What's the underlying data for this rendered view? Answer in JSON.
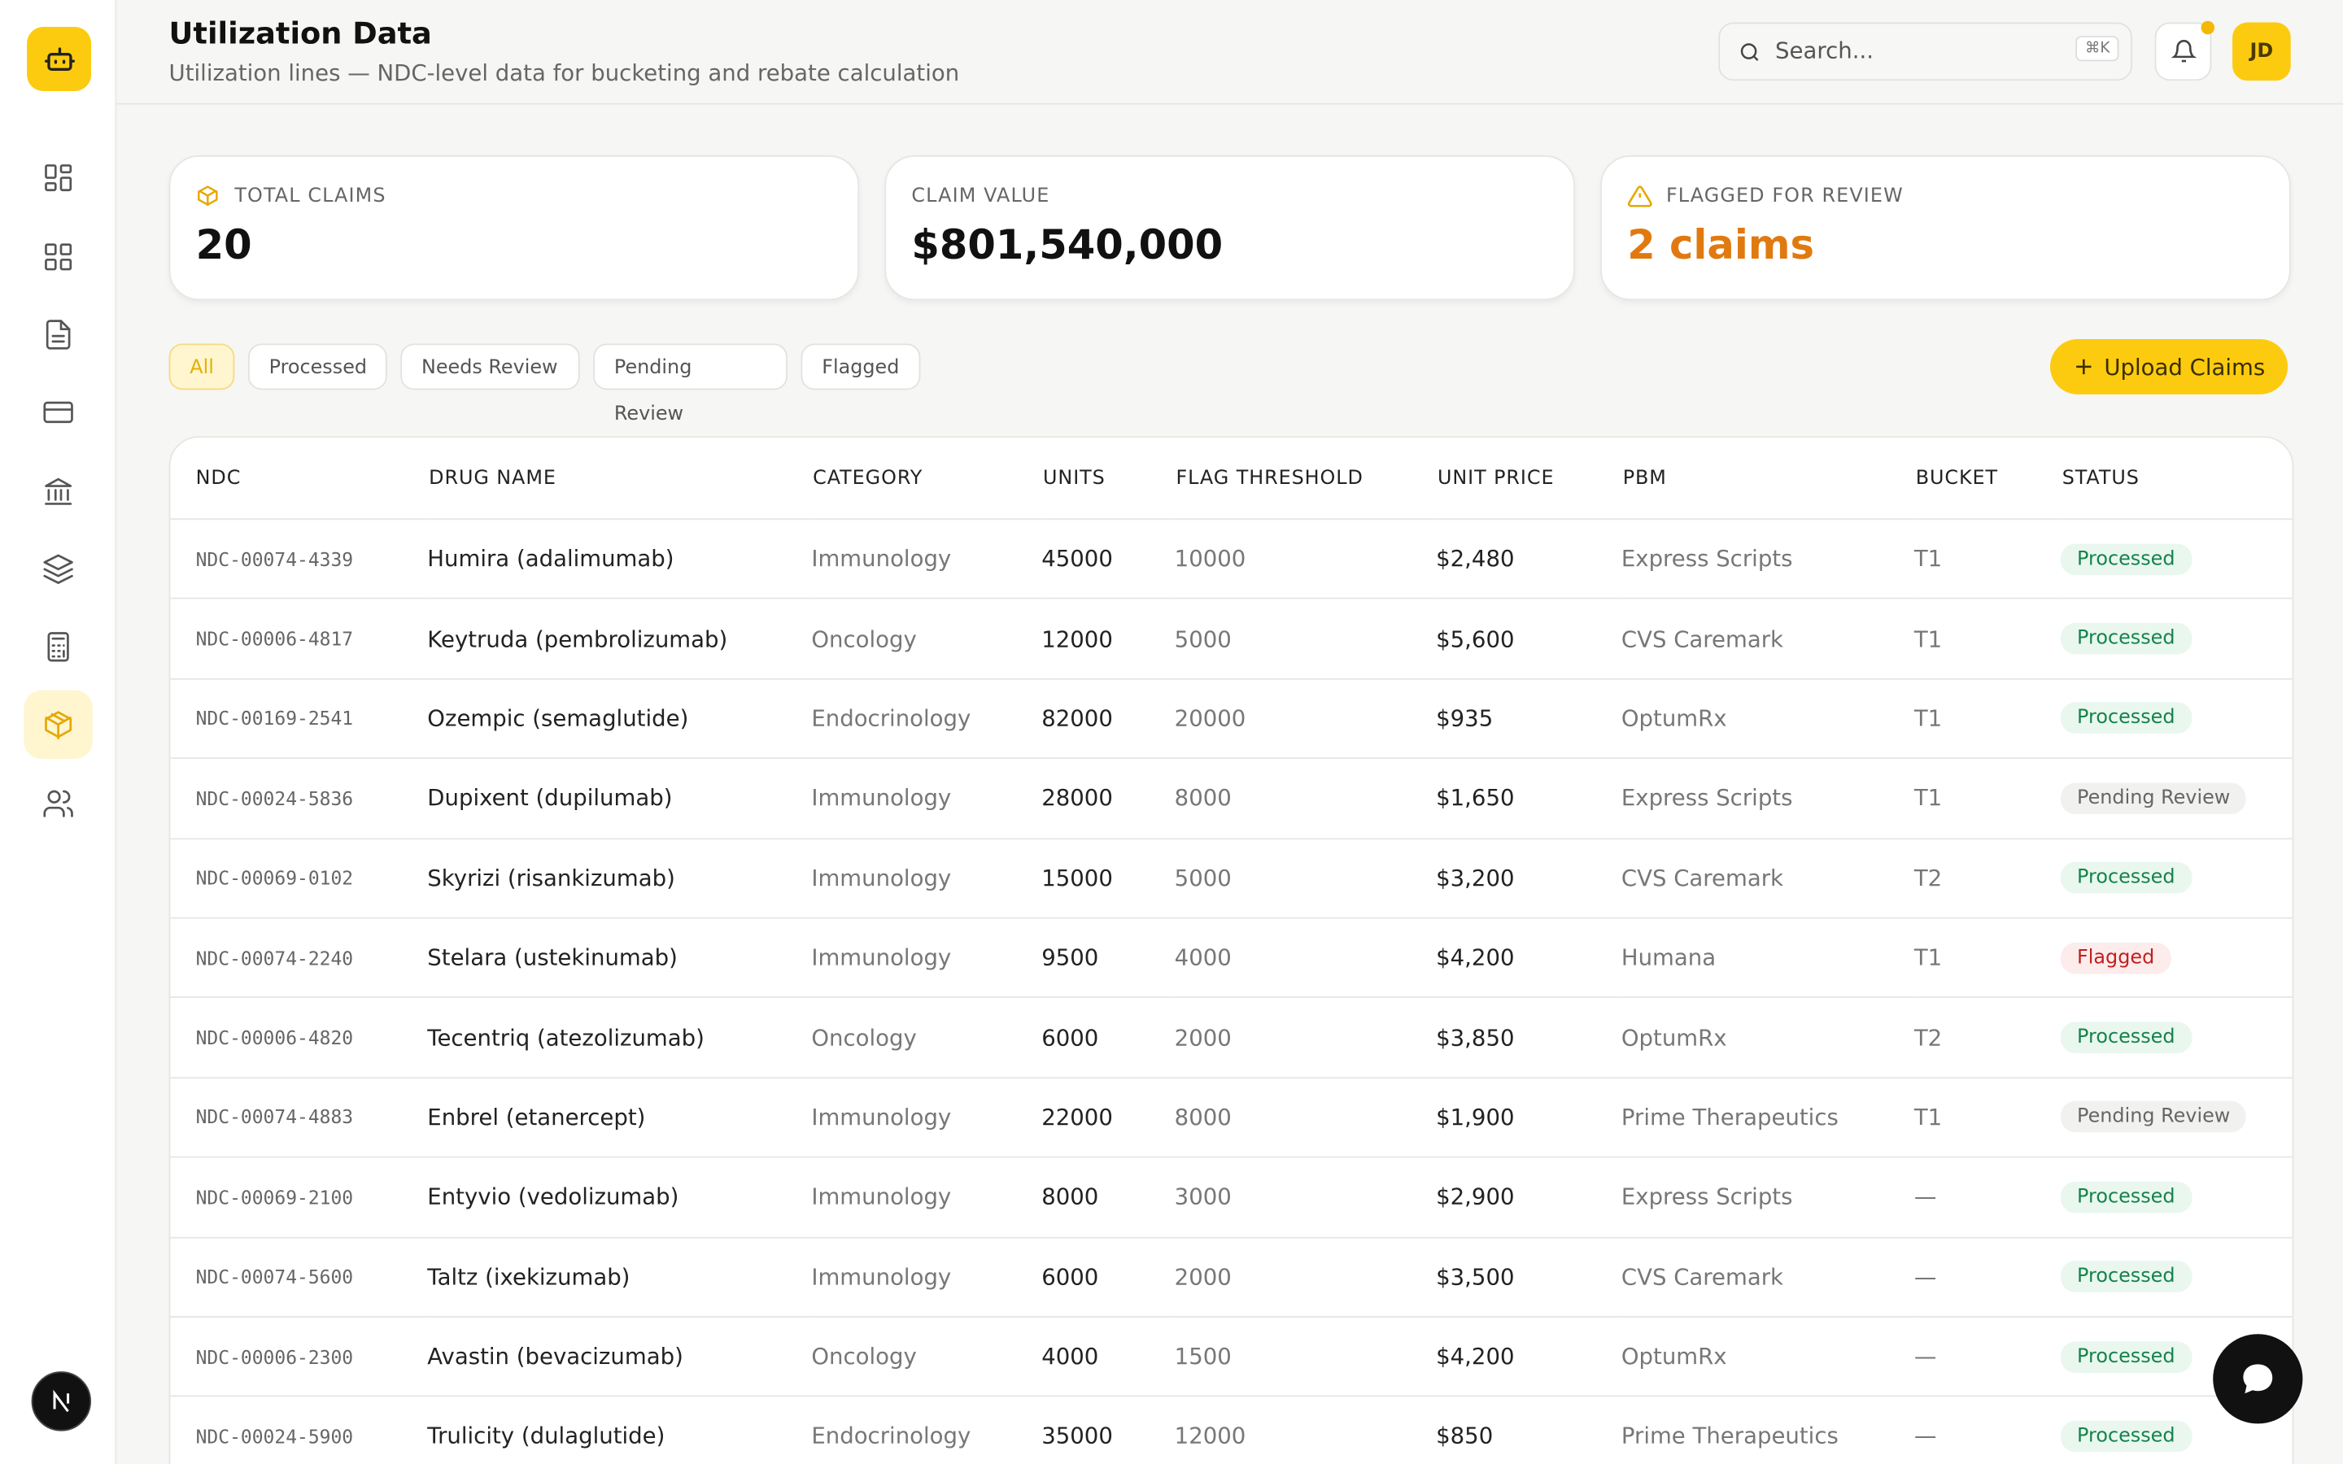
{
  "header": {
    "title": "Utilization Data",
    "subtitle": "Utilization lines — NDC-level data for bucketing and rebate calculation",
    "search_placeholder": "Search...",
    "search_shortcut": "⌘K",
    "avatar": "JD"
  },
  "stats": [
    {
      "label": "TOTAL CLAIMS",
      "value": "20"
    },
    {
      "label": "CLAIM VALUE",
      "value": "$801,540,000"
    },
    {
      "label": "FLAGGED FOR REVIEW",
      "value": "2 claims"
    }
  ],
  "filters": [
    "All",
    "Processed",
    "Needs Review",
    "Pending Review",
    "Flagged"
  ],
  "upload_button": "Upload Claims",
  "table": {
    "columns": [
      "NDC",
      "DRUG NAME",
      "CATEGORY",
      "UNITS",
      "FLAG THRESHOLD",
      "UNIT PRICE",
      "PBM",
      "BUCKET",
      "STATUS"
    ],
    "rows": [
      [
        "NDC-00074-4339",
        "Humira (adalimumab)",
        "Immunology",
        45000,
        10000,
        "$2,480",
        "Express Scripts",
        "T1",
        "Processed"
      ],
      [
        "NDC-00006-4817",
        "Keytruda (pembrolizumab)",
        "Oncology",
        12000,
        5000,
        "$5,600",
        "CVS Caremark",
        "T1",
        "Processed"
      ],
      [
        "NDC-00169-2541",
        "Ozempic (semaglutide)",
        "Endocrinology",
        82000,
        20000,
        "$935",
        "OptumRx",
        "T1",
        "Processed"
      ],
      [
        "NDC-00024-5836",
        "Dupixent (dupilumab)",
        "Immunology",
        28000,
        8000,
        "$1,650",
        "Express Scripts",
        "T1",
        "Pending Review"
      ],
      [
        "NDC-00069-0102",
        "Skyrizi (risankizumab)",
        "Immunology",
        15000,
        5000,
        "$3,200",
        "CVS Caremark",
        "T2",
        "Processed"
      ],
      [
        "NDC-00074-2240",
        "Stelara (ustekinumab)",
        "Immunology",
        9500,
        4000,
        "$4,200",
        "Humana",
        "T1",
        "Flagged"
      ],
      [
        "NDC-00006-4820",
        "Tecentriq (atezolizumab)",
        "Oncology",
        6000,
        2000,
        "$3,850",
        "OptumRx",
        "T2",
        "Processed"
      ],
      [
        "NDC-00074-4883",
        "Enbrel (etanercept)",
        "Immunology",
        22000,
        8000,
        "$1,900",
        "Prime Therapeutics",
        "T1",
        "Pending Review"
      ],
      [
        "NDC-00069-2100",
        "Entyvio (vedolizumab)",
        "Immunology",
        8000,
        3000,
        "$2,900",
        "Express Scripts",
        "—",
        "Processed"
      ],
      [
        "NDC-00074-5600",
        "Taltz (ixekizumab)",
        "Immunology",
        6000,
        2000,
        "$3,500",
        "CVS Caremark",
        "—",
        "Processed"
      ],
      [
        "NDC-00006-2300",
        "Avastin (bevacizumab)",
        "Oncology",
        4000,
        1500,
        "$4,200",
        "OptumRx",
        "—",
        "Processed"
      ],
      [
        "NDC-00024-5900",
        "Trulicity (dulaglutide)",
        "Endocrinology",
        35000,
        12000,
        "$850",
        "Prime Therapeutics",
        "—",
        "Processed"
      ]
    ]
  }
}
